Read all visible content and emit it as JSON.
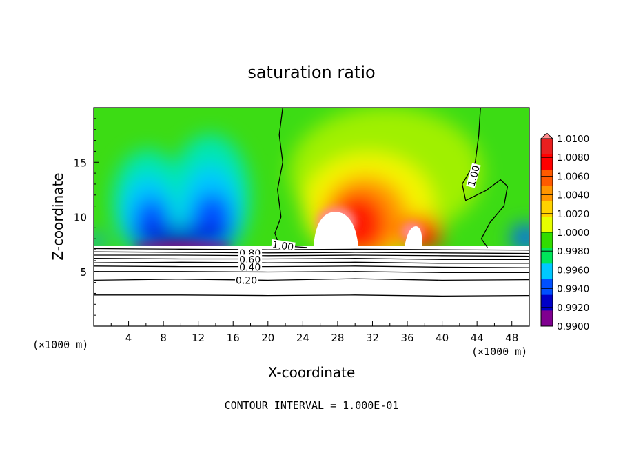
{
  "chart_data": {
    "type": "heatmap",
    "title": "saturation ratio",
    "xlabel": "X-coordinate",
    "ylabel": "Z-coordinate",
    "x_unit_label": "(×1000 m)",
    "z_unit_label": "(×1000 m)",
    "xlim": [
      0,
      50
    ],
    "ylim": [
      0,
      20
    ],
    "x_ticks": [
      "4",
      "8",
      "12",
      "16",
      "20",
      "24",
      "28",
      "32",
      "36",
      "40",
      "44",
      "48"
    ],
    "y_ticks": [
      "5",
      "10",
      "15"
    ],
    "footer": "CONTOUR INTERVAL = 1.000E-01",
    "colorbar": {
      "labels": [
        "1.0100",
        "1.0080",
        "1.0060",
        "1.0040",
        "1.0020",
        "1.0000",
        "0.9980",
        "0.9960",
        "0.9940",
        "0.9920",
        "0.9900"
      ],
      "colors": [
        "#e91f1f",
        "#ff0000",
        "#ff5a00",
        "#ff9600",
        "#ffd200",
        "#e6ff00",
        "#32dc00",
        "#00e65a",
        "#00c8ff",
        "#0050ff",
        "#0000c8",
        "#800090"
      ],
      "top_color": "#ff8c8c"
    },
    "contour_labels": [
      "1.00",
      "1.00",
      "0.80",
      "0.60",
      "0.40",
      "0.20"
    ],
    "contour_lines": [
      {
        "name": "1.00-left",
        "label": "1.00",
        "points": [
          [
            21.7,
            20
          ],
          [
            21.3,
            17.5
          ],
          [
            21.7,
            15
          ],
          [
            21.1,
            12.5
          ],
          [
            21.5,
            10
          ],
          [
            20.8,
            8.5
          ],
          [
            21.2,
            7.6
          ],
          [
            22.5,
            7.3
          ],
          [
            24.5,
            7.2
          ]
        ]
      },
      {
        "name": "1.00-right",
        "label": "1.00",
        "points": [
          [
            44.4,
            20
          ],
          [
            44.2,
            17.5
          ],
          [
            43.8,
            15
          ],
          [
            42.3,
            13
          ],
          [
            42.7,
            11.5
          ],
          [
            45,
            12.4
          ],
          [
            46.7,
            13.4
          ],
          [
            47.5,
            12.8
          ],
          [
            47.1,
            11
          ],
          [
            45.5,
            9.5
          ],
          [
            44.5,
            8
          ],
          [
            45.2,
            7.2
          ]
        ]
      },
      {
        "name": "0.90",
        "label": "",
        "points": [
          [
            0,
            7.1
          ],
          [
            10,
            7.05
          ],
          [
            20,
            7.0
          ],
          [
            30,
            7.05
          ],
          [
            40,
            7.0
          ],
          [
            50,
            6.95
          ]
        ]
      },
      {
        "name": "0.80",
        "label": "0.80",
        "points": [
          [
            0,
            6.8
          ],
          [
            10,
            6.75
          ],
          [
            20,
            6.7
          ],
          [
            30,
            6.75
          ],
          [
            40,
            6.7
          ],
          [
            50,
            6.65
          ]
        ]
      },
      {
        "name": "0.70",
        "label": "",
        "points": [
          [
            0,
            6.5
          ],
          [
            10,
            6.5
          ],
          [
            20,
            6.45
          ],
          [
            30,
            6.5
          ],
          [
            40,
            6.45
          ],
          [
            50,
            6.4
          ]
        ]
      },
      {
        "name": "0.60",
        "label": "0.60",
        "points": [
          [
            0,
            6.2
          ],
          [
            10,
            6.15
          ],
          [
            20,
            6.15
          ],
          [
            30,
            6.2
          ],
          [
            40,
            6.1
          ],
          [
            50,
            6.1
          ]
        ]
      },
      {
        "name": "0.50",
        "label": "",
        "points": [
          [
            0,
            5.8
          ],
          [
            10,
            5.85
          ],
          [
            20,
            5.8
          ],
          [
            30,
            5.85
          ],
          [
            40,
            5.75
          ],
          [
            50,
            5.75
          ]
        ]
      },
      {
        "name": "0.40",
        "label": "0.40",
        "points": [
          [
            0,
            5.5
          ],
          [
            10,
            5.45
          ],
          [
            20,
            5.45
          ],
          [
            30,
            5.5
          ],
          [
            40,
            5.4
          ],
          [
            50,
            5.35
          ]
        ]
      },
      {
        "name": "0.30",
        "label": "",
        "points": [
          [
            0,
            5.0
          ],
          [
            10,
            5.0
          ],
          [
            20,
            4.95
          ],
          [
            30,
            5.0
          ],
          [
            40,
            4.9
          ],
          [
            50,
            4.9
          ]
        ]
      },
      {
        "name": "0.20",
        "label": "0.20",
        "points": [
          [
            0,
            4.2
          ],
          [
            10,
            4.3
          ],
          [
            20,
            4.2
          ],
          [
            30,
            4.35
          ],
          [
            40,
            4.2
          ],
          [
            50,
            4.25
          ]
        ]
      },
      {
        "name": "0.10",
        "label": "",
        "points": [
          [
            0,
            2.85
          ],
          [
            10,
            2.85
          ],
          [
            20,
            2.8
          ],
          [
            30,
            2.85
          ],
          [
            40,
            2.75
          ],
          [
            50,
            2.8
          ]
        ]
      }
    ]
  }
}
